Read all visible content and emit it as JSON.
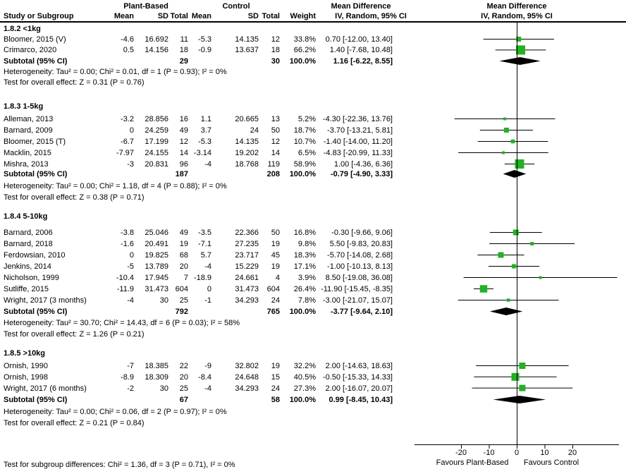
{
  "header": {
    "group1": "Plant-Based",
    "group2": "Control",
    "col_study": "Study or Subgroup",
    "col_mean": "Mean",
    "col_sd": "SD",
    "col_total": "Total",
    "col_weight": "Weight",
    "md_label": "Mean Difference",
    "iv_label": "IV, Random, 95% CI"
  },
  "chart_data": {
    "type": "forest",
    "effect_measure": "Mean Difference, IV, Random, 95% CI",
    "x_axis": {
      "ticks": [
        -20,
        -10,
        0,
        10,
        20
      ],
      "tick_labels": [
        "-20",
        "-10",
        "0",
        "10",
        "20"
      ],
      "favours_left": "Favours Plant-Based",
      "favours_right": "Favours Control"
    },
    "colors": {
      "square": "#22B122",
      "diamond": "#000000",
      "line": "#000000"
    },
    "footer": "Test for subgroup differences: Chi² = 1.36, df = 3 (P = 0.71), I² = 0%",
    "sections": [
      {
        "label": "1.8.2 <1kg",
        "studies": [
          {
            "name": "Bloomer, 2015 (V)",
            "mean1": "-4.6",
            "sd1": "16.692",
            "total1": "11",
            "mean2": "-5.3",
            "sd2": "14.135",
            "total2": "12",
            "weight": "33.8%",
            "md": "0.70 [-12.00, 13.40]",
            "est": 0.7,
            "lo": -12.0,
            "hi": 13.4,
            "box": 7
          },
          {
            "name": "Crimarco, 2020",
            "mean1": "0.5",
            "sd1": "14.156",
            "total1": "18",
            "mean2": "-0.9",
            "sd2": "13.637",
            "total2": "18",
            "weight": "66.2%",
            "md": "1.40 [-7.68, 10.48]",
            "est": 1.4,
            "lo": -7.68,
            "hi": 10.48,
            "box": 13
          }
        ],
        "subtotal": {
          "label": "Subtotal (95% CI)",
          "total1": "29",
          "total2": "30",
          "weight": "100.0%",
          "md": "1.16 [-6.22, 8.55]",
          "est": 1.16,
          "lo": -6.22,
          "hi": 8.55
        },
        "heterogeneity": "Heterogeneity: Tau² = 0.00; Chi² = 0.01, df = 1 (P = 0.93); I² = 0%",
        "overall": "Test for overall effect: Z = 0.31 (P = 0.76)"
      },
      {
        "label": "1.8.3 1-5kg",
        "studies": [
          {
            "name": "Alleman, 2013",
            "mean1": "-3.2",
            "sd1": "28.856",
            "total1": "16",
            "mean2": "1.1",
            "sd2": "20.665",
            "total2": "13",
            "weight": "5.2%",
            "md": "-4.30 [-22.36, 13.76]",
            "est": -4.3,
            "lo": -22.36,
            "hi": 13.76,
            "box": 4
          },
          {
            "name": "Barnard, 2009",
            "mean1": "0",
            "sd1": "24.259",
            "total1": "49",
            "mean2": "3.7",
            "sd2": "24",
            "total2": "50",
            "weight": "18.7%",
            "md": "-3.70 [-13.21, 5.81]",
            "est": -3.7,
            "lo": -13.21,
            "hi": 5.81,
            "box": 7
          },
          {
            "name": "Bloomer, 2015 (T)",
            "mean1": "-6.7",
            "sd1": "17.199",
            "total1": "12",
            "mean2": "-5.3",
            "sd2": "14.135",
            "total2": "12",
            "weight": "10.7%",
            "md": "-1.40 [-14.00, 11.20]",
            "est": -1.4,
            "lo": -14.0,
            "hi": 11.2,
            "box": 5.5
          },
          {
            "name": "Macklin, 2015",
            "mean1": "-7.97",
            "sd1": "24.155",
            "total1": "14",
            "mean2": "-3.14",
            "sd2": "19.202",
            "total2": "14",
            "weight": "6.5%",
            "md": "-4.83 [-20.99, 11.33]",
            "est": -4.83,
            "lo": -20.99,
            "hi": 11.33,
            "box": 4
          },
          {
            "name": "Mishra, 2013",
            "mean1": "-3",
            "sd1": "20.831",
            "total1": "96",
            "mean2": "-4",
            "sd2": "18.768",
            "total2": "119",
            "weight": "58.9%",
            "md": "1.00 [-4.36, 6.36]",
            "est": 1.0,
            "lo": -4.36,
            "hi": 6.36,
            "box": 13
          }
        ],
        "subtotal": {
          "label": "Subtotal (95% CI)",
          "total1": "187",
          "total2": "208",
          "weight": "100.0%",
          "md": "-0.79 [-4.90, 3.33]",
          "est": -0.79,
          "lo": -4.9,
          "hi": 3.33
        },
        "heterogeneity": "Heterogeneity: Tau² = 0.00; Chi² = 1.18, df = 4 (P = 0.88); I² = 0%",
        "overall": "Test for overall effect: Z = 0.38 (P = 0.71)"
      },
      {
        "label": "1.8.4 5-10kg",
        "studies": [
          {
            "name": "Barnard, 2006",
            "mean1": "-3.8",
            "sd1": "25.046",
            "total1": "49",
            "mean2": "-3.5",
            "sd2": "22.366",
            "total2": "50",
            "weight": "16.8%",
            "md": "-0.30 [-9.66, 9.06]",
            "est": -0.3,
            "lo": -9.66,
            "hi": 9.06,
            "box": 8
          },
          {
            "name": "Barnard, 2018",
            "mean1": "-1.6",
            "sd1": "20.491",
            "total1": "19",
            "mean2": "-7.1",
            "sd2": "27.235",
            "total2": "19",
            "weight": "9.8%",
            "md": "5.50 [-9.83, 20.83]",
            "est": 5.5,
            "lo": -9.83,
            "hi": 20.83,
            "box": 5
          },
          {
            "name": "Ferdowsian, 2010",
            "mean1": "0",
            "sd1": "19.825",
            "total1": "68",
            "mean2": "5.7",
            "sd2": "23.717",
            "total2": "45",
            "weight": "18.3%",
            "md": "-5.70 [-14.08, 2.68]",
            "est": -5.7,
            "lo": -14.08,
            "hi": 2.68,
            "box": 8
          },
          {
            "name": "Jenkins, 2014",
            "mean1": "-5",
            "sd1": "13.789",
            "total1": "20",
            "mean2": "-4",
            "sd2": "15.229",
            "total2": "19",
            "weight": "17.1%",
            "md": "-1.00 [-10.13, 8.13]",
            "est": -1.0,
            "lo": -10.13,
            "hi": 8.13,
            "box": 6
          },
          {
            "name": "Nicholson, 1999",
            "mean1": "-10.4",
            "sd1": "17.945",
            "total1": "7",
            "mean2": "-18.9",
            "sd2": "24.661",
            "total2": "4",
            "weight": "3.9%",
            "md": "8.50 [-19.08, 36.08]",
            "est": 8.5,
            "lo": -19.08,
            "hi": 36.08,
            "box": 4
          },
          {
            "name": "Sutliffe, 2015",
            "mean1": "-11.9",
            "sd1": "31.473",
            "total1": "604",
            "mean2": "0",
            "sd2": "31.473",
            "total2": "604",
            "weight": "26.4%",
            "md": "-11.90 [-15.45, -8.35]",
            "est": -11.9,
            "lo": -15.45,
            "hi": -8.35,
            "box": 10.5
          },
          {
            "name": "Wright, 2017 (3 months)",
            "mean1": "-4",
            "sd1": "30",
            "total1": "25",
            "mean2": "-1",
            "sd2": "34.293",
            "total2": "24",
            "weight": "7.8%",
            "md": "-3.00 [-21.07, 15.07]",
            "est": -3.0,
            "lo": -21.07,
            "hi": 15.07,
            "box": 4.5
          }
        ],
        "subtotal": {
          "label": "Subtotal (95% CI)",
          "total1": "792",
          "total2": "765",
          "weight": "100.0%",
          "md": "-3.77 [-9.64, 2.10]",
          "est": -3.77,
          "lo": -9.64,
          "hi": 2.1
        },
        "heterogeneity": "Heterogeneity: Tau² = 30.70; Chi² = 14.43, df = 6 (P = 0.03); I² = 58%",
        "overall": "Test for overall effect: Z = 1.26 (P = 0.21)"
      },
      {
        "label": "1.8.5 >10kg",
        "studies": [
          {
            "name": "Ornish, 1990",
            "mean1": "-7",
            "sd1": "18.385",
            "total1": "22",
            "mean2": "-9",
            "sd2": "32.802",
            "total2": "19",
            "weight": "32.2%",
            "md": "2.00 [-14.63, 18.63]",
            "est": 2.0,
            "lo": -14.63,
            "hi": 18.63,
            "box": 9
          },
          {
            "name": "Ornish, 1998",
            "mean1": "-8.9",
            "sd1": "18.309",
            "total1": "20",
            "mean2": "-8.4",
            "sd2": "24.648",
            "total2": "15",
            "weight": "40.5%",
            "md": "-0.50 [-15.33, 14.33]",
            "est": -0.5,
            "lo": -15.33,
            "hi": 14.33,
            "box": 11
          },
          {
            "name": "Wright, 2017 (6 months)",
            "mean1": "-2",
            "sd1": "30",
            "total1": "25",
            "mean2": "-4",
            "sd2": "34.293",
            "total2": "24",
            "weight": "27.3%",
            "md": "2.00 [-16.07, 20.07]",
            "est": 2.0,
            "lo": -16.07,
            "hi": 20.07,
            "box": 9
          }
        ],
        "subtotal": {
          "label": "Subtotal (95% CI)",
          "total1": "67",
          "total2": "58",
          "weight": "100.0%",
          "md": "0.99 [-8.45, 10.43]",
          "est": 0.99,
          "lo": -8.45,
          "hi": 10.43
        },
        "heterogeneity": "Heterogeneity: Tau² = 0.00; Chi² = 0.06, df = 2 (P = 0.97); I² = 0%",
        "overall": "Test for overall effect: Z = 0.21 (P = 0.84)"
      }
    ]
  }
}
